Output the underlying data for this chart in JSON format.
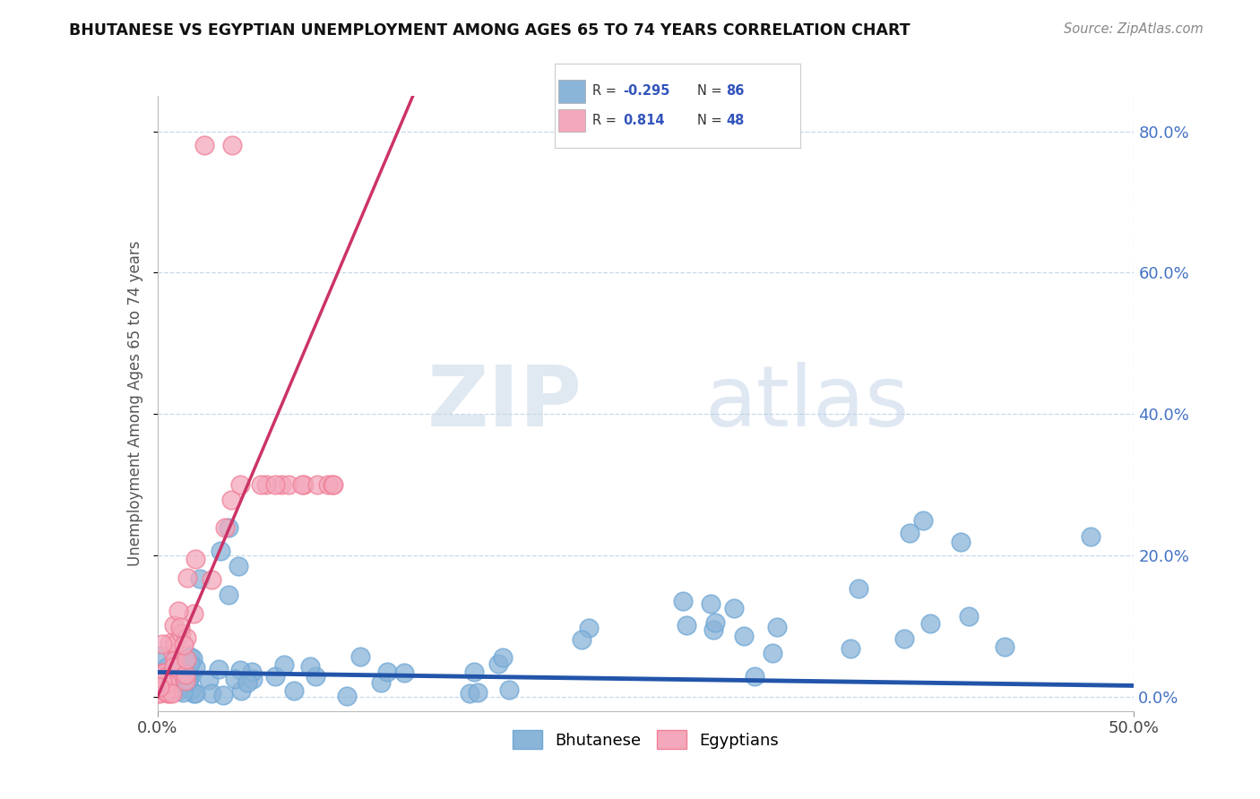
{
  "title": "BHUTANESE VS EGYPTIAN UNEMPLOYMENT AMONG AGES 65 TO 74 YEARS CORRELATION CHART",
  "source": "Source: ZipAtlas.com",
  "ylabel": "Unemployment Among Ages 65 to 74 years",
  "xlim": [
    0.0,
    0.5
  ],
  "ylim": [
    -0.02,
    0.85
  ],
  "x_tick_positions": [
    0.0,
    0.5
  ],
  "x_tick_labels": [
    "0.0%",
    "50.0%"
  ],
  "y_tick_positions": [
    0.0,
    0.2,
    0.4,
    0.6,
    0.8
  ],
  "y_tick_labels": [
    "0.0%",
    "20.0%",
    "40.0%",
    "60.0%",
    "80.0%"
  ],
  "bhutanese_color": "#8ab4d8",
  "bhutanese_edge_color": "#6fa8d6",
  "egyptian_color": "#f4a8bc",
  "egyptian_edge_color": "#f08098",
  "bhutanese_R": -0.295,
  "bhutanese_N": 86,
  "egyptian_R": 0.814,
  "egyptian_N": 48,
  "bhutanese_line_color": "#2255aa",
  "egyptian_line_color": "#cc3366",
  "watermark_zip": "ZIP",
  "watermark_atlas": "atlas",
  "grid_color": "#c8d8e8",
  "legend_bhutanese_label": "Bhutanese",
  "legend_egyptian_label": "Egyptians"
}
